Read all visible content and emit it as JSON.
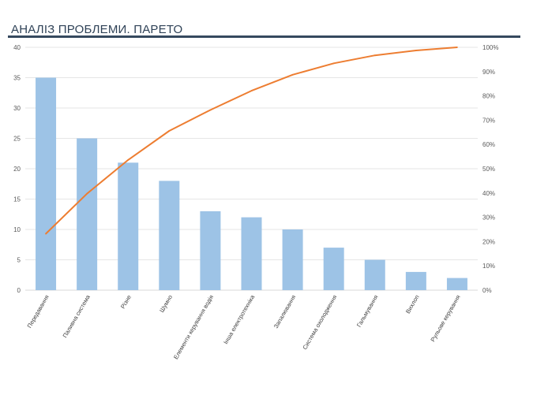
{
  "header": {
    "title": "АНАЛІЗ ПРОБЛЕМИ. ПАРЕТО"
  },
  "colors": {
    "bar": "#9dc3e6",
    "line": "#ed7d31",
    "grid": "#e6e6e6",
    "title_rule": "#35495e"
  },
  "chart_data": {
    "type": "bar",
    "title": "",
    "categories": [
      "Передавання",
      "Паливна система",
      "Різне",
      "Шумно",
      "Елементи керування водія",
      "Інша електротехніка",
      "Запалювання",
      "Система охолодження",
      "Гальмування",
      "Вихлоп",
      "Рульове керування"
    ],
    "series": [
      {
        "type": "bar",
        "axis": "left",
        "values": [
          35,
          25,
          21,
          18,
          13,
          12,
          10,
          7,
          5,
          3,
          2
        ]
      },
      {
        "type": "line",
        "axis": "right",
        "values": [
          23.2,
          39.7,
          53.6,
          65.6,
          74.2,
          82.1,
          88.7,
          93.4,
          96.7,
          98.7,
          100
        ]
      }
    ],
    "y_left": {
      "min": 0,
      "max": 40,
      "ticks": [
        "0",
        "5",
        "10",
        "15",
        "20",
        "25",
        "30",
        "35",
        "40"
      ]
    },
    "y_right": {
      "min": 0,
      "max": 100,
      "ticks": [
        "0%",
        "10%",
        "20%",
        "30%",
        "40%",
        "50%",
        "60%",
        "70%",
        "80%",
        "90%",
        "100%"
      ]
    },
    "grid": true,
    "legend": "none"
  }
}
